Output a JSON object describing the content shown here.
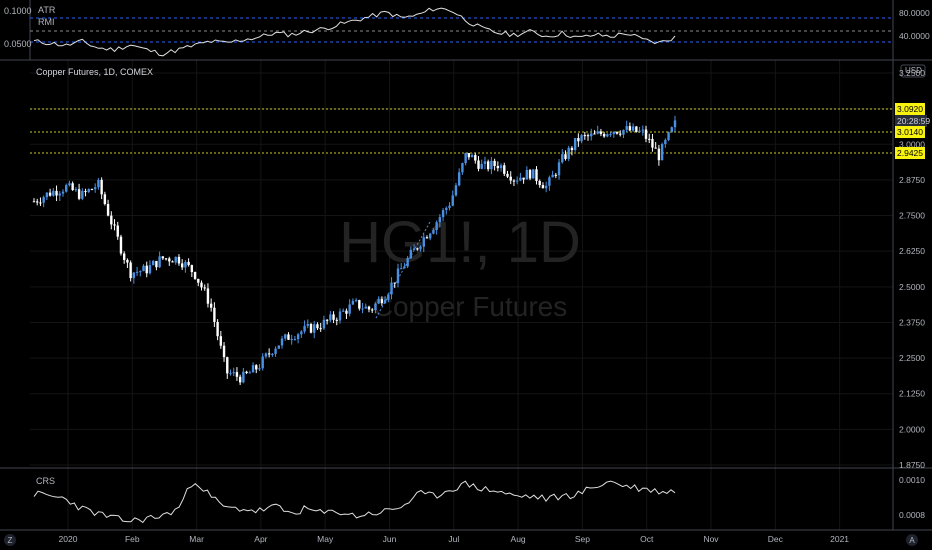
{
  "colors": {
    "background": "#000000",
    "grid": "#1a1a1a",
    "text": "#b2b5be",
    "candle_up": "#4a90e2",
    "candle_down": "#ffffff",
    "level_line": "#c8c826",
    "price_tag_bg": "#f7f30e",
    "countdown_bg": "#2a2e39"
  },
  "top_panel": {
    "labels": [
      "ATR",
      "RMI"
    ],
    "left_ticks": [
      "0.1000",
      "0.0500"
    ],
    "right_ticks": [
      "80.0000",
      "40.0000"
    ]
  },
  "main_panel": {
    "title": "Copper Futures, 1D, COMEX",
    "watermark_symbol": "HG1!, 1D",
    "watermark_name": "Copper Futures",
    "currency": "USD",
    "price_ticks": [
      "3.2500",
      "3.1250",
      "3.0000",
      "2.8750",
      "2.7500",
      "2.6250",
      "2.5000",
      "2.3750",
      "2.2500",
      "2.1250",
      "2.0000",
      "1.8750"
    ],
    "tags": {
      "last_price": "3.0920",
      "countdown": "20:28:59",
      "level_1": "3.0140",
      "level_2": "2.9425"
    }
  },
  "bottom_panel": {
    "label": "CRS",
    "right_ticks": [
      "0.0010",
      "0.0008"
    ]
  },
  "time_axis": {
    "labels": [
      "2020",
      "Feb",
      "Mar",
      "Apr",
      "May",
      "Jun",
      "Jul",
      "Aug",
      "Sep",
      "Oct",
      "Nov",
      "Dec",
      "2021"
    ]
  },
  "corner_icons": {
    "left": "Z",
    "right": "A"
  },
  "chart_data": [
    {
      "type": "candlestick",
      "title": "Copper Futures, 1D, COMEX",
      "ylim": [
        1.86,
        3.27
      ],
      "levels": [
        3.092,
        3.014,
        2.9425
      ],
      "x": [
        "Jan 2",
        "Jan 9",
        "Jan 16",
        "Jan 23",
        "Jan 30",
        "Feb 6",
        "Feb 13",
        "Feb 20",
        "Feb 27",
        "Mar 5",
        "Mar 12",
        "Mar 19",
        "Mar 26",
        "Apr 2",
        "Apr 9",
        "Apr 16",
        "Apr 23",
        "Apr 30",
        "May 7",
        "May 14",
        "May 21",
        "May 28",
        "Jun 4",
        "Jun 11",
        "Jun 18",
        "Jun 25",
        "Jul 2",
        "Jul 9",
        "Jul 16",
        "Jul 23",
        "Jul 30",
        "Aug 6",
        "Aug 13",
        "Aug 20",
        "Aug 27",
        "Sep 3",
        "Sep 10",
        "Sep 17",
        "Sep 24",
        "Oct 1",
        "Oct 8"
      ],
      "close": [
        2.8,
        2.83,
        2.85,
        2.82,
        2.86,
        2.7,
        2.55,
        2.56,
        2.6,
        2.6,
        2.55,
        2.44,
        2.2,
        2.18,
        2.22,
        2.29,
        2.33,
        2.35,
        2.37,
        2.4,
        2.44,
        2.42,
        2.48,
        2.57,
        2.65,
        2.72,
        2.8,
        2.97,
        2.92,
        2.93,
        2.88,
        2.9,
        2.85,
        2.95,
        3.02,
        3.03,
        3.05,
        3.05,
        3.04,
        2.96,
        3.07
      ]
    },
    {
      "type": "line",
      "series": [
        {
          "name": "ATR",
          "values": [
            0.06,
            0.058,
            0.055,
            0.06,
            0.052,
            0.05,
            0.056,
            0.05,
            0.045,
            0.05,
            0.055,
            0.06,
            0.058,
            0.062,
            0.065,
            0.07,
            0.068,
            0.072,
            0.075,
            0.08,
            0.085,
            0.09,
            0.095,
            0.088,
            0.092,
            0.1,
            0.098,
            0.085,
            0.075,
            0.07,
            0.068,
            0.072,
            0.066,
            0.07,
            0.064,
            0.068,
            0.066,
            0.07,
            0.062,
            0.058,
            0.065
          ]
        }
      ]
    },
    {
      "type": "line",
      "series": [
        {
          "name": "CRS",
          "values": [
            0.00088,
            0.00087,
            0.00086,
            0.00082,
            0.0008,
            0.00078,
            0.00077,
            0.00078,
            0.00079,
            0.00082,
            0.00094,
            0.00087,
            0.00082,
            0.00082,
            0.00081,
            0.00083,
            0.0008,
            0.00082,
            0.0008,
            0.00081,
            0.00079,
            0.0008,
            0.00081,
            0.00083,
            0.00088,
            0.00087,
            0.0009,
            0.00092,
            0.0009,
            0.00089,
            0.00087,
            0.00087,
            0.00086,
            0.00087,
            0.00088,
            0.00091,
            0.00093,
            0.00091,
            0.0009,
            0.00089,
            0.00089
          ]
        }
      ]
    }
  ]
}
